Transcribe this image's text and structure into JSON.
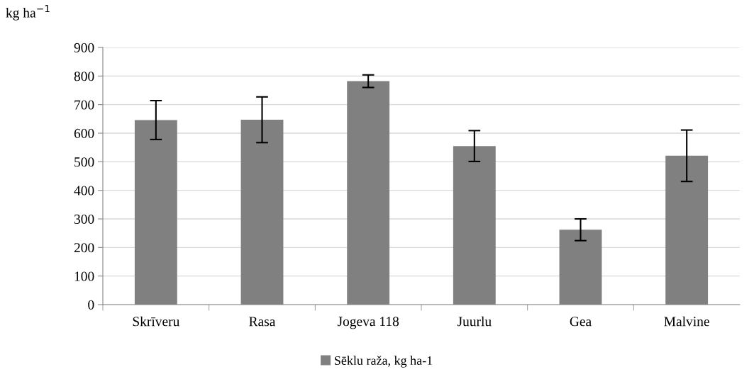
{
  "chart_data": {
    "type": "bar",
    "ylabel": "kg ha$^{−1}$",
    "categories": [
      "Skrīveru",
      "Rasa",
      "Jogeva 118",
      "Juurlu",
      "Gea",
      "Malvine"
    ],
    "series": [
      {
        "name": "Sēklu raža, kg ha-1",
        "color": "#808080",
        "values": [
          646,
          647,
          782,
          555,
          262,
          521
        ],
        "errors": [
          68,
          80,
          22,
          54,
          38,
          90
        ]
      }
    ],
    "ylim": [
      0,
      900
    ],
    "yticks": [
      0,
      100,
      200,
      300,
      400,
      500,
      600,
      700,
      800,
      900
    ],
    "grid": "y",
    "legend": "bottom"
  }
}
